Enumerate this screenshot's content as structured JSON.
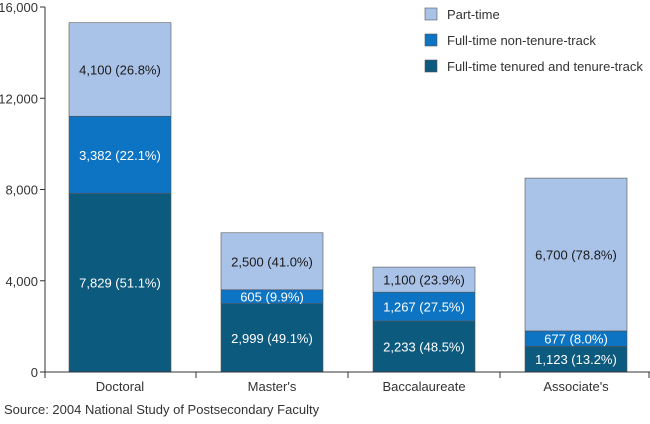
{
  "chart_data": {
    "type": "bar",
    "stacked": true,
    "categories": [
      "Doctoral",
      "Master's",
      "Baccalaureate",
      "Associate's"
    ],
    "series": [
      {
        "name": "Full-time tenured and tenure-track",
        "color": "#0d5a7f",
        "values": [
          7829,
          2999,
          2233,
          1123
        ],
        "labels": [
          "7,829  (51.1%)",
          "2,999  (49.1%)",
          "2,233  (48.5%)",
          "1,123  (13.2%)"
        ]
      },
      {
        "name": "Full-time non-tenure-track",
        "color": "#0c74c2",
        "values": [
          3382,
          605,
          1267,
          677
        ],
        "labels": [
          "3,382  (22.1%)",
          "605  (9.9%)",
          "1,267  (27.5%)",
          "677  (8.0%)"
        ]
      },
      {
        "name": "Part-time",
        "color": "#a9c2e7",
        "values": [
          4100,
          2500,
          1100,
          6700
        ],
        "labels": [
          "4,100  (26.8%)",
          "2,500  (41.0%)",
          "1,100  (23.9%)",
          "6,700  (78.8%)"
        ]
      }
    ],
    "ylim": [
      0,
      16000
    ],
    "yticks": [
      0,
      4000,
      8000,
      12000,
      16000
    ],
    "ytick_labels": [
      "0",
      "4,000",
      "8,000",
      "12,000",
      "16,000"
    ],
    "grid": false,
    "legend_position": "top-right",
    "legend_order": [
      2,
      1,
      0
    ]
  },
  "source": "Source: 2004 National Study of Postsecondary Faculty"
}
